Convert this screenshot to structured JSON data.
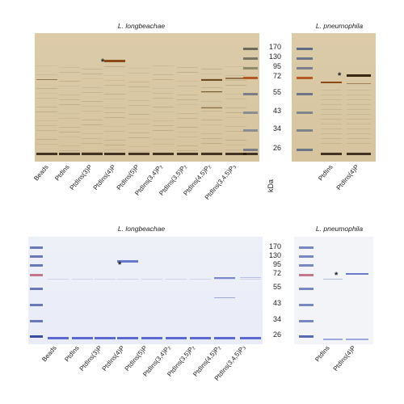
{
  "top_figure": {
    "title_left": "L. longbeachae",
    "title_right": "L. pneumophila",
    "left_lanes": [
      "Beads",
      "PtdIns",
      "PtdIns(3)P",
      "PtdIns(4)P",
      "PtdIns(5)P",
      "PtdIns(3,4)P2",
      "PtdIns(3,5)P2",
      "PtdIns(4,5)P2",
      "PtdIns(3,4,5)P3"
    ],
    "right_lanes": [
      "PtdIns",
      "PtdIns(4)P"
    ],
    "markers": [
      "170",
      "130",
      "95",
      "72",
      "55",
      "43",
      "34",
      "26"
    ],
    "unit": "kDa",
    "star": "*"
  },
  "bottom_figure": {
    "title_left": "L. longbeachae",
    "title_right": "L. pneumophila",
    "left_lanes": [
      "Beads",
      "PtdIns",
      "PtdIns(3)P",
      "PtdIns(4)P",
      "PtdIns(5)P",
      "PtdIns(3,4)P2",
      "PtdIns(3,5)P2",
      "PtdIns(4,5)P2",
      "PtdIns(3,4,5)P3"
    ],
    "right_lanes": [
      "PtdIns",
      "PtdIns(4)P"
    ],
    "markers": [
      "170",
      "130",
      "95",
      "72",
      "55",
      "43",
      "34",
      "26"
    ],
    "star": "*"
  }
}
